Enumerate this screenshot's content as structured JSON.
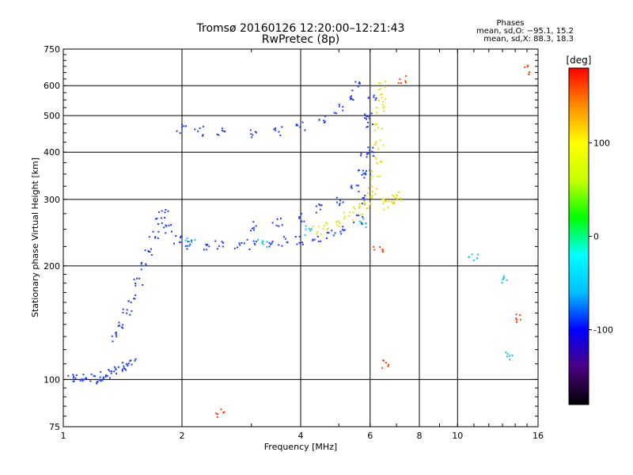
{
  "chart_data": {
    "type": "scatter",
    "title": "Tromsø 20160126 12:20:00–12:21:43",
    "subtitle": "RwPretec (8p)",
    "xlabel": "Frequency [MHz]",
    "ylabel": "Stationary phase Virtual Height [km]",
    "x_scale": "log",
    "y_scale": "log",
    "xlim": [
      1,
      16
    ],
    "ylim": [
      75,
      750
    ],
    "x_ticks": [
      1,
      2,
      4,
      6,
      8,
      10,
      16
    ],
    "y_ticks": [
      75,
      100,
      200,
      300,
      400,
      500,
      600,
      750
    ],
    "x_grid": [
      2,
      4,
      6,
      8,
      10
    ],
    "y_grid": [
      100,
      200,
      300,
      400,
      500,
      600
    ],
    "grid": true,
    "stats": {
      "heading": "Phases",
      "line1": "mean, sd,O: −95.1, 15.2",
      "line2": "mean, sd,X:  88.3, 18.3"
    },
    "colorbar": {
      "title": "[deg]",
      "ticks": [
        100,
        0,
        -100
      ],
      "range": [
        -180,
        180
      ],
      "palette": [
        "#000000",
        "#4b0082",
        "#0000ff",
        "#00bfff",
        "#00ffff",
        "#00ff00",
        "#c8ff00",
        "#ffff00",
        "#ff8c00",
        "#ff0000"
      ]
    },
    "series": [
      {
        "color": "#1e3cff",
        "points": [
          [
            1.05,
            100
          ],
          [
            1.1,
            101
          ],
          [
            1.15,
            101
          ],
          [
            1.2,
            100
          ],
          [
            1.25,
            102
          ],
          [
            1.3,
            104
          ],
          [
            1.35,
            105
          ],
          [
            1.4,
            106
          ],
          [
            1.45,
            108
          ],
          [
            1.5,
            110
          ],
          [
            1.35,
            130
          ],
          [
            1.4,
            140
          ],
          [
            1.45,
            150
          ],
          [
            1.5,
            165
          ],
          [
            1.55,
            180
          ],
          [
            1.6,
            200
          ],
          [
            1.65,
            220
          ],
          [
            1.7,
            240
          ],
          [
            1.75,
            260
          ],
          [
            1.8,
            275
          ],
          [
            1.85,
            250
          ],
          [
            1.95,
            235
          ],
          [
            2.1,
            228
          ],
          [
            2.3,
            226
          ],
          [
            2.5,
            226
          ],
          [
            2.8,
            227
          ],
          [
            3.0,
            228
          ],
          [
            3.3,
            230
          ],
          [
            3.6,
            232
          ],
          [
            4.0,
            234
          ],
          [
            4.4,
            238
          ],
          [
            4.8,
            242
          ],
          [
            5.2,
            250
          ],
          [
            5.6,
            265
          ],
          [
            5.8,
            300
          ],
          [
            5.9,
            350
          ],
          [
            5.95,
            400
          ],
          [
            6.0,
            480
          ],
          [
            6.05,
            560
          ],
          [
            3.0,
            255
          ],
          [
            3.5,
            262
          ],
          [
            4.0,
            270
          ],
          [
            4.5,
            283
          ],
          [
            5.0,
            298
          ],
          [
            5.5,
            320
          ],
          [
            5.7,
            350
          ],
          [
            5.8,
            400
          ],
          [
            5.9,
            500
          ],
          [
            2.0,
            460
          ],
          [
            2.2,
            455
          ],
          [
            2.5,
            450
          ],
          [
            3.0,
            447
          ],
          [
            3.5,
            455
          ],
          [
            4.0,
            470
          ],
          [
            4.5,
            490
          ],
          [
            5.0,
            520
          ],
          [
            5.3,
            560
          ],
          [
            5.5,
            600
          ]
        ]
      },
      {
        "color": "#e8e000",
        "points": [
          [
            4.4,
            250
          ],
          [
            4.7,
            255
          ],
          [
            5.0,
            260
          ],
          [
            5.3,
            270
          ],
          [
            5.6,
            280
          ],
          [
            5.8,
            290
          ],
          [
            6.0,
            300
          ],
          [
            6.1,
            320
          ],
          [
            6.2,
            350
          ],
          [
            6.25,
            380
          ],
          [
            6.3,
            420
          ],
          [
            6.3,
            470
          ],
          [
            6.35,
            520
          ],
          [
            6.4,
            560
          ],
          [
            6.5,
            600
          ],
          [
            6.6,
            300
          ],
          [
            6.7,
            290
          ],
          [
            6.8,
            300
          ],
          [
            7.0,
            305
          ]
        ]
      },
      {
        "color": "#00c8ff",
        "points": [
          [
            2.1,
            230
          ],
          [
            3.2,
            230
          ],
          [
            4.2,
            248
          ],
          [
            5.8,
            260
          ],
          [
            11,
            210
          ],
          [
            13,
            185
          ],
          [
            13.5,
            115
          ]
        ]
      },
      {
        "color": "#ff4000",
        "points": [
          [
            2.5,
            82
          ],
          [
            6.3,
            220
          ],
          [
            6.6,
            110
          ],
          [
            14.5,
            145
          ],
          [
            15,
            660
          ],
          [
            7.2,
            620
          ]
        ]
      }
    ]
  }
}
